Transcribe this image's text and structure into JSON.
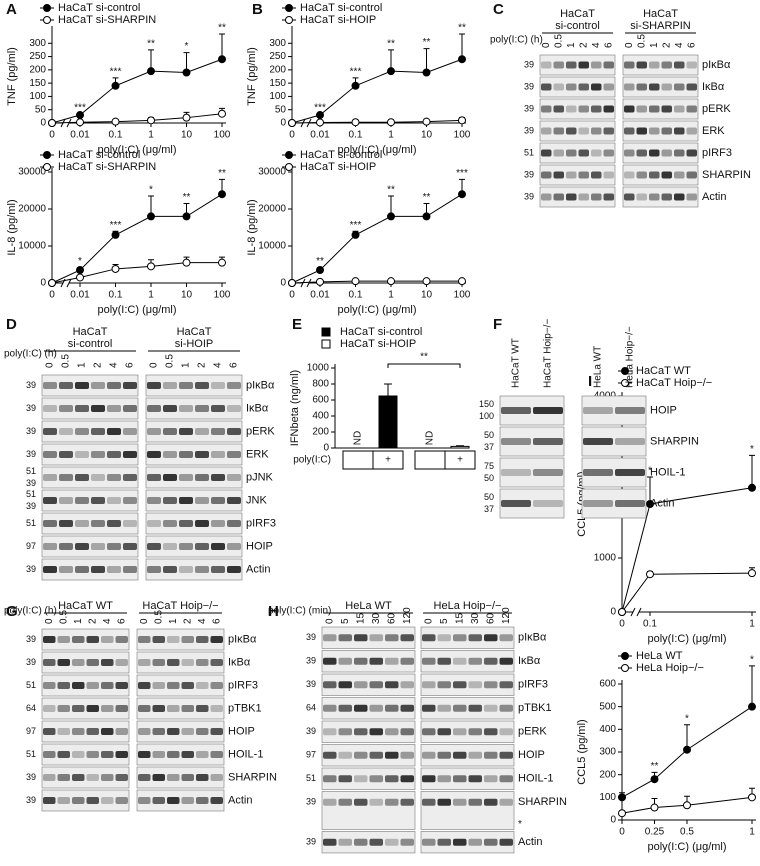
{
  "chart_data": [
    {
      "panel": "A",
      "type": "line",
      "ylabel": "TNF (pg/ml)",
      "xlabel": "poly(I:C) (μg/ml)",
      "categories": [
        "0",
        "0.01",
        "0.1",
        "1",
        "10",
        "100"
      ],
      "x_break": true,
      "ylim": [
        0,
        350
      ],
      "yticks": [
        0,
        50,
        100,
        150,
        200,
        250,
        300
      ],
      "series": [
        {
          "name": "HaCaT si-control",
          "color": "#000000",
          "values": [
            0,
            30,
            140,
            195,
            190,
            240
          ],
          "errors": [
            0,
            5,
            30,
            80,
            75,
            95
          ]
        },
        {
          "name": "HaCaT si-SHARPIN",
          "color": "#ffffff",
          "values": [
            0,
            3,
            5,
            10,
            20,
            35
          ],
          "errors": [
            0,
            3,
            5,
            10,
            20,
            20
          ]
        }
      ],
      "significance": [
        null,
        "***",
        "***",
        "**",
        "*",
        "**"
      ]
    },
    {
      "type": "line",
      "ylabel": "IL-8 (pg/ml)",
      "xlabel": "poly(I:C) (μg/ml)",
      "categories": [
        "0",
        "0.01",
        "0.1",
        "1",
        "10",
        "100"
      ],
      "x_break": true,
      "ylim": [
        0,
        30000
      ],
      "yticks": [
        0,
        10000,
        20000,
        30000
      ],
      "series": [
        {
          "name": "HaCaT si-control",
          "color": "#000000",
          "values": [
            0,
            3500,
            13000,
            18000,
            18000,
            24000
          ],
          "errors": [
            0,
            700,
            1000,
            5500,
            3500,
            4000
          ]
        },
        {
          "name": "HaCaT si-SHARPIN",
          "color": "#ffffff",
          "values": [
            0,
            1500,
            3800,
            4500,
            5500,
            5500
          ],
          "errors": [
            0,
            500,
            1200,
            1800,
            1500,
            1500
          ]
        }
      ],
      "significance": [
        null,
        "*",
        "***",
        "*",
        "**",
        "**"
      ]
    },
    {
      "panel": "B",
      "type": "line",
      "ylabel": "TNF (pg/ml)",
      "xlabel": "poly(I:C) (μg/ml)",
      "categories": [
        "0",
        "0.01",
        "0.1",
        "1",
        "10",
        "100"
      ],
      "x_break": true,
      "ylim": [
        0,
        350
      ],
      "yticks": [
        0,
        50,
        100,
        150,
        200,
        250,
        300
      ],
      "series": [
        {
          "name": "HaCaT si-control",
          "color": "#000000",
          "values": [
            0,
            30,
            140,
            195,
            190,
            240
          ],
          "errors": [
            0,
            5,
            30,
            80,
            90,
            95
          ]
        },
        {
          "name": "HaCaT si-HOIP",
          "color": "#ffffff",
          "values": [
            0,
            2,
            3,
            3,
            5,
            10
          ],
          "errors": [
            0,
            2,
            3,
            5,
            5,
            10
          ]
        }
      ],
      "significance": [
        null,
        "***",
        "***",
        "**",
        "**",
        "**"
      ]
    },
    {
      "type": "line",
      "ylabel": "IL-8 (pg/ml)",
      "xlabel": "poly(I:C) (μg/ml)",
      "categories": [
        "0",
        "0.01",
        "0.1",
        "1",
        "10",
        "100"
      ],
      "x_break": true,
      "ylim": [
        0,
        30000
      ],
      "yticks": [
        0,
        10000,
        20000,
        30000
      ],
      "series": [
        {
          "name": "HaCaT si-control",
          "color": "#000000",
          "values": [
            0,
            3500,
            13000,
            18000,
            18000,
            24000
          ],
          "errors": [
            0,
            700,
            1000,
            5500,
            3500,
            4000
          ]
        },
        {
          "name": "HaCaT si-HOIP",
          "color": "#ffffff",
          "values": [
            0,
            300,
            500,
            500,
            500,
            500
          ],
          "errors": [
            0,
            100,
            200,
            200,
            200,
            200
          ]
        }
      ],
      "significance": [
        null,
        "**",
        "***",
        "**",
        "**",
        "***"
      ]
    },
    {
      "panel": "E",
      "type": "bar",
      "ylabel": "IFNbeta (ng/ml)",
      "row_label": "poly(I:C)",
      "categories": [
        null,
        "+"
      ],
      "ylim": [
        0,
        1000
      ],
      "yticks": [
        0,
        200,
        400,
        600,
        800,
        1000
      ],
      "series": [
        {
          "name": "HaCaT si-control",
          "color": "#000000",
          "values": [
            null,
            650
          ],
          "value_labels": [
            "ND",
            null
          ],
          "errors": [
            null,
            150
          ]
        },
        {
          "name": "HaCaT si-HOIP",
          "color": "#ffffff",
          "values": [
            null,
            20
          ],
          "value_labels": [
            "ND",
            null
          ],
          "errors": [
            null,
            8
          ]
        }
      ],
      "significance": "**"
    },
    {
      "panel": "I",
      "type": "line",
      "ylabel": "CCL5 (pg/ml)",
      "xlabel": "poly(I:C) (μg/ml)",
      "categories": [
        "0",
        "0.1",
        "1"
      ],
      "x_break": true,
      "ylim": [
        0,
        4000
      ],
      "yticks": [
        0,
        1000,
        2000,
        3000,
        4000
      ],
      "series": [
        {
          "name": "HaCaT WT",
          "color": "#000000",
          "values": [
            0,
            2000,
            2300
          ],
          "errors": [
            0,
            500,
            600
          ]
        },
        {
          "name": "HaCaT Hoip−/−",
          "color": "#ffffff",
          "values": [
            0,
            700,
            720
          ],
          "errors": [
            0,
            50,
            100
          ]
        }
      ],
      "significance": [
        null,
        "*",
        "*"
      ]
    },
    {
      "type": "line",
      "ylabel": "CCL5 (pg/ml)",
      "xlabel": "poly(I:C) (μg/ml)",
      "x": [
        0,
        0.25,
        0.5,
        1
      ],
      "xlim": [
        0,
        1
      ],
      "xticks": [
        0,
        0.25,
        0.5,
        1
      ],
      "ylim": [
        0,
        600
      ],
      "yticks": [
        0,
        100,
        200,
        300,
        400,
        500,
        600
      ],
      "series": [
        {
          "name": "HeLa WT",
          "color": "#000000",
          "values": [
            100,
            180,
            310,
            500
          ],
          "errors": [
            20,
            30,
            110,
            180
          ]
        },
        {
          "name": "HeLa Hoip−/−",
          "color": "#ffffff",
          "values": [
            30,
            55,
            65,
            100
          ],
          "errors": [
            10,
            40,
            40,
            40
          ]
        }
      ],
      "significance": [
        null,
        "**",
        "*",
        "*"
      ]
    }
  ],
  "blots": [
    {
      "panel": "C",
      "unit_label": "poly(I:C) (h)",
      "groups": [
        {
          "name": [
            "HaCaT",
            "si-control"
          ],
          "lanes": [
            "0",
            "0.5",
            "1",
            "2",
            "4",
            "6"
          ]
        },
        {
          "name": [
            "HaCaT",
            "si-SHARPIN"
          ],
          "lanes": [
            "0",
            "0.5",
            "1",
            "2",
            "4",
            "6"
          ]
        }
      ],
      "rows": [
        {
          "name": "pIκBα",
          "markers": [
            39
          ]
        },
        {
          "name": "IκBα",
          "markers": [
            39
          ]
        },
        {
          "name": "pERK",
          "markers": [
            39
          ]
        },
        {
          "name": "ERK",
          "markers": [
            39
          ]
        },
        {
          "name": "pIRF3",
          "markers": [
            51
          ]
        },
        {
          "name": "SHARPIN",
          "markers": [
            39
          ]
        },
        {
          "name": "Actin",
          "markers": [
            39
          ]
        }
      ]
    },
    {
      "panel": "D",
      "unit_label": "poly(I:C) (h)",
      "groups": [
        {
          "name": [
            "HaCaT",
            "si-control"
          ],
          "lanes": [
            "0",
            "0.5",
            "1",
            "2",
            "4",
            "6"
          ]
        },
        {
          "name": [
            "HaCaT",
            "si-HOIP"
          ],
          "lanes": [
            "0",
            "0.5",
            "1",
            "2",
            "4",
            "6"
          ]
        }
      ],
      "rows": [
        {
          "name": "pIκBα",
          "markers": [
            39
          ]
        },
        {
          "name": "IκBα",
          "markers": [
            39
          ]
        },
        {
          "name": "pERK",
          "markers": [
            39
          ]
        },
        {
          "name": "ERK",
          "markers": [
            39
          ]
        },
        {
          "name": "pJNK",
          "markers": [
            51,
            39
          ]
        },
        {
          "name": "JNK",
          "markers": [
            51,
            39
          ]
        },
        {
          "name": "pIRF3",
          "markers": [
            51
          ]
        },
        {
          "name": "HOIP",
          "markers": [
            97
          ]
        },
        {
          "name": "Actin",
          "markers": [
            39
          ]
        }
      ]
    },
    {
      "panel": "F",
      "groups": [
        {
          "lanes": [
            "HaCaT WT",
            "HaCaT Hoip−/−"
          ]
        },
        {
          "lanes": [
            "HeLa WT",
            "HeLa Hoip−/−"
          ]
        }
      ],
      "rows": [
        {
          "name": "HOIP",
          "markers": [
            150,
            100
          ]
        },
        {
          "name": "SHARPIN",
          "markers": [
            50,
            37
          ]
        },
        {
          "name": "HOIL-1",
          "markers": [
            75,
            50
          ]
        },
        {
          "name": "Actin",
          "markers": [
            50,
            37
          ]
        }
      ]
    },
    {
      "panel": "G",
      "unit_label": "poly(I:C) (h)",
      "groups": [
        {
          "name": [
            "HaCaT WT"
          ],
          "lanes": [
            "0",
            "0.5",
            "1",
            "2",
            "4",
            "6"
          ]
        },
        {
          "name": [
            "HaCaT Hoip−/−"
          ],
          "lanes": [
            "0",
            "0.5",
            "1",
            "2",
            "4",
            "6"
          ]
        }
      ],
      "rows": [
        {
          "name": "pIκBα",
          "markers": [
            39
          ]
        },
        {
          "name": "IκBα",
          "markers": [
            39
          ]
        },
        {
          "name": "pIRF3",
          "markers": [
            51
          ]
        },
        {
          "name": "pTBK1",
          "markers": [
            64
          ]
        },
        {
          "name": "HOIP",
          "markers": [
            97
          ]
        },
        {
          "name": "HOIL-1",
          "markers": [
            51
          ]
        },
        {
          "name": "SHARPIN",
          "markers": [
            39
          ]
        },
        {
          "name": "Actin",
          "markers": [
            39
          ]
        }
      ]
    },
    {
      "panel": "H",
      "unit_label": "poly(I:C) (min)",
      "groups": [
        {
          "name": [
            "HeLa WT"
          ],
          "lanes": [
            "0",
            "5",
            "15",
            "30",
            "60",
            "120"
          ]
        },
        {
          "name": [
            "HeLa Hoip−/−"
          ],
          "lanes": [
            "0",
            "5",
            "15",
            "30",
            "60",
            "120"
          ]
        }
      ],
      "rows": [
        {
          "name": "pIκBα",
          "markers": [
            39
          ]
        },
        {
          "name": "IκBα",
          "markers": [
            39
          ]
        },
        {
          "name": "pIRF3",
          "markers": [
            39
          ]
        },
        {
          "name": "pTBK1",
          "markers": [
            64
          ]
        },
        {
          "name": "pERK",
          "markers": [
            39
          ]
        },
        {
          "name": "HOIP",
          "markers": [
            97
          ]
        },
        {
          "name": "HOIL-1",
          "markers": [
            51
          ]
        },
        {
          "name": "SHARPIN",
          "markers": [
            39
          ],
          "note": "*"
        },
        {
          "name": "Actin",
          "markers": [
            39
          ]
        }
      ]
    }
  ]
}
